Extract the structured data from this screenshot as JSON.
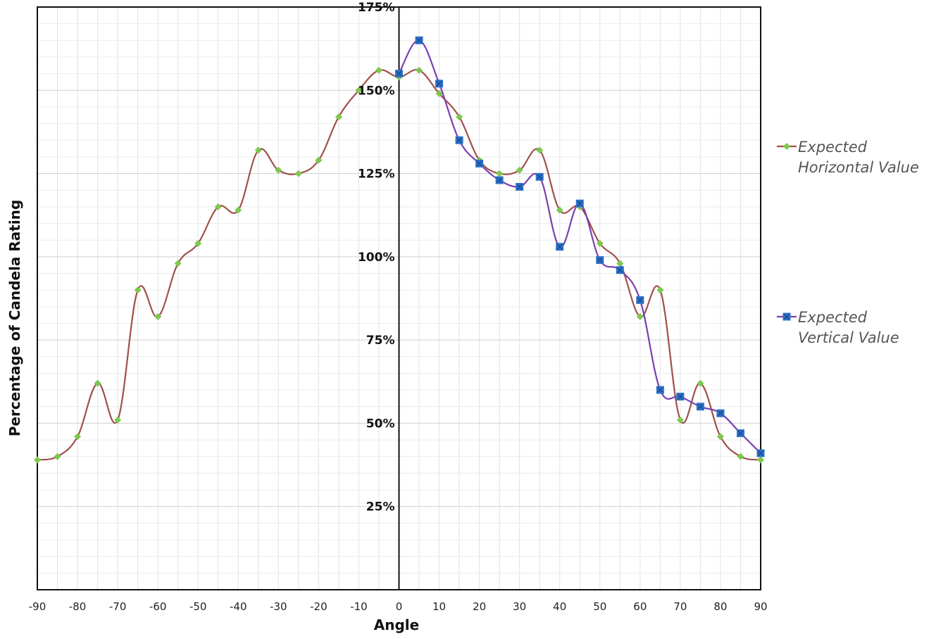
{
  "chart_data": {
    "type": "line",
    "xlabel": "Angle",
    "ylabel": "Percentage of Candela Rating",
    "xlim": [
      -90,
      90
    ],
    "ylim": [
      0,
      175
    ],
    "x_ticks": [
      "-90",
      "-80",
      "-70",
      "-60",
      "-50",
      "-40",
      "-30",
      "-20",
      "-10",
      "0",
      "10",
      "20",
      "30",
      "40",
      "50",
      "60",
      "70",
      "80",
      "90"
    ],
    "y_ticks": [
      "25%",
      "50%",
      "75%",
      "100%",
      "125%",
      "150%",
      "175%"
    ],
    "grid": true,
    "legend_position": "right",
    "series": [
      {
        "name_lines": [
          "Expected",
          "Horizontal Value"
        ],
        "color": "#a0504a",
        "marker": "diamond",
        "marker_color": "#7ec850",
        "x": [
          -90,
          -85,
          -80,
          -75,
          -70,
          -65,
          -60,
          -55,
          -50,
          -45,
          -40,
          -35,
          -30,
          -25,
          -20,
          -15,
          -10,
          -5,
          0,
          5,
          10,
          15,
          20,
          25,
          30,
          35,
          40,
          45,
          50,
          55,
          60,
          65,
          70,
          75,
          80,
          85,
          90
        ],
        "y": [
          39,
          40,
          46,
          62,
          51,
          90,
          82,
          98,
          104,
          115,
          114,
          132,
          126,
          125,
          129,
          142,
          150,
          156,
          154,
          156,
          149,
          142,
          129,
          125,
          126,
          132,
          114,
          115,
          104,
          98,
          82,
          90,
          51,
          62,
          46,
          40,
          39
        ]
      },
      {
        "name_lines": [
          "Expected",
          "Vertical Value"
        ],
        "color": "#7a3fb0",
        "marker": "square",
        "marker_color": "#2f72c8",
        "x": [
          0,
          5,
          10,
          15,
          20,
          25,
          30,
          35,
          40,
          45,
          50,
          55,
          60,
          65,
          70,
          75,
          80,
          85,
          90
        ],
        "y": [
          155,
          165,
          152,
          135,
          128,
          123,
          121,
          124,
          103,
          116,
          99,
          96,
          87,
          60,
          58,
          55,
          53,
          47,
          41
        ]
      }
    ]
  }
}
